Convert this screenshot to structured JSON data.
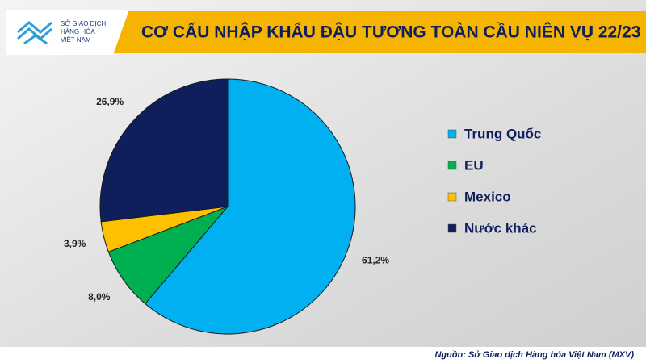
{
  "logo": [
    "SỞ GIAO DỊCH",
    "HÀNG HÓA",
    "VIỆT NAM"
  ],
  "source": "Nguồn: Sở Giao dịch Hàng hóa Việt Nam (MXV)",
  "chart_data": {
    "type": "pie",
    "title": "CƠ CẤU NHẬP KHẨU ĐẬU TƯƠNG TOÀN CẦU NIÊN VỤ 22/23",
    "categories": [
      "Trung Quốc",
      "EU",
      "Mexico",
      "Nước khác"
    ],
    "values": [
      61.2,
      8.0,
      3.9,
      26.9
    ],
    "value_labels": [
      "61,2%",
      "8,0%",
      "3,9%",
      "26,9%"
    ],
    "colors": [
      "#00b0f0",
      "#00b050",
      "#ffc000",
      "#0f1f5c"
    ],
    "legend": "right"
  }
}
